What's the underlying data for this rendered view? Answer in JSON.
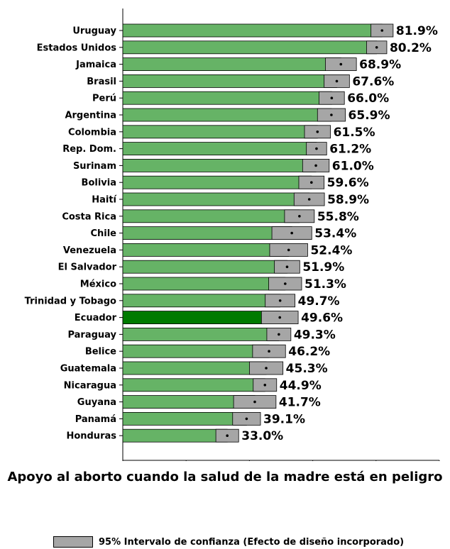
{
  "chart_data": {
    "type": "bar",
    "orientation": "horizontal",
    "categories": [
      "Uruguay",
      "Estados Unidos",
      "Jamaica",
      "Brasil",
      "Perú",
      "Argentina",
      "Colombia",
      "Rep. Dom.",
      "Surinam",
      "Bolivia",
      "Haití",
      "Costa Rica",
      "Chile",
      "Venezuela",
      "El Salvador",
      "México",
      "Trinidad y Tobago",
      "Ecuador",
      "Paraguay",
      "Belice",
      "Guatemala",
      "Nicaragua",
      "Guyana",
      "Panamá",
      "Honduras"
    ],
    "values": [
      81.9,
      80.2,
      68.9,
      67.6,
      66.0,
      65.9,
      61.5,
      61.2,
      61.0,
      59.6,
      58.9,
      55.8,
      53.4,
      52.4,
      51.9,
      51.3,
      49.7,
      49.6,
      49.3,
      46.2,
      45.3,
      44.9,
      41.7,
      39.1,
      33.0
    ],
    "value_labels": [
      "81.9%",
      "80.2%",
      "68.9%",
      "67.6%",
      "66.0%",
      "65.9%",
      "61.5%",
      "61.2%",
      "61.0%",
      "59.6%",
      "58.9%",
      "55.8%",
      "53.4%",
      "52.4%",
      "51.9%",
      "51.3%",
      "49.7%",
      "49.6%",
      "49.3%",
      "46.2%",
      "45.3%",
      "44.9%",
      "41.7%",
      "39.1%",
      "33.0%"
    ],
    "ci_lower": [
      78.4,
      77.0,
      64.0,
      63.6,
      62.0,
      61.5,
      57.4,
      58.0,
      56.8,
      55.6,
      54.1,
      51.1,
      47.1,
      46.4,
      47.9,
      46.1,
      45.0,
      43.8,
      45.5,
      41.0,
      40.0,
      41.2,
      35.0,
      34.7,
      29.4
    ],
    "ci_upper": [
      85.4,
      83.4,
      73.8,
      71.6,
      70.0,
      70.3,
      65.6,
      64.4,
      65.2,
      63.6,
      63.7,
      60.5,
      59.7,
      58.4,
      55.9,
      56.5,
      54.4,
      55.4,
      53.1,
      51.4,
      50.6,
      48.6,
      48.4,
      43.5,
      36.6
    ],
    "highlight": "Ecuador",
    "xlabel": "Apoyo al aborto cuando la salud de la madre está en peligro",
    "ylabel": "",
    "xlim": [
      0,
      100
    ],
    "xticks": [
      0,
      20,
      40,
      60,
      80,
      100
    ],
    "grid": false,
    "legend": {
      "label": "95% Intervalo de confianza (Efecto de diseño incorporado)",
      "placement": "bottom"
    },
    "colors": {
      "bar": "#66b366",
      "highlight": "#007a00",
      "ci": "#a6a6a6",
      "point": "#000000"
    }
  }
}
